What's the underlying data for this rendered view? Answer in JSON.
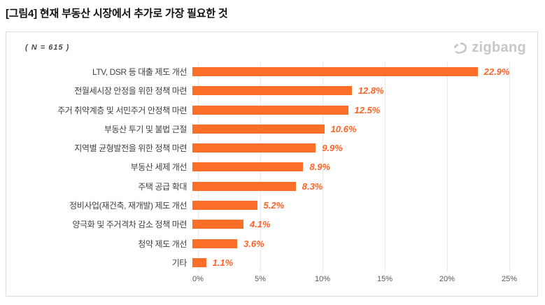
{
  "title": "[그림4] 현재 부동산 시장에서 추가로 가장 필요한 것",
  "panel": {
    "sample_label": "( N = 615 )"
  },
  "brand": {
    "name": "zigbang",
    "icon": "zigbang-logo-mark",
    "color": "#c7c7c7"
  },
  "colors": {
    "bar": "#fa6e28",
    "value_label": "#fa6428",
    "grid": "#eaeaea",
    "axis_text": "#595959",
    "category_text": "#3f3f3f",
    "panel_border": "#dcdcdc",
    "title_text": "#111111"
  },
  "chart_data": {
    "type": "bar",
    "orientation": "horizontal",
    "title": "현재 부동산 시장에서 추가로 가장 필요한 것",
    "subtitle": "( N = 615 )",
    "categories": [
      "LTV, DSR 등 대출 제도 개선",
      "전월세시장 안정을 위한 정책 마련",
      "주거 취약계층 및 서민주거 안정책 마련",
      "부동산 투기 및 불법 근절",
      "지역별 균형발전을 위한 정책 마련",
      "부동산 세제 개선",
      "주택 공급 확대",
      "정비사업(재건축, 재개발) 제도 개선",
      "양극화 및 주거격차 감소 정책 마련",
      "청약 제도 개선",
      "기타"
    ],
    "values": [
      22.9,
      12.8,
      12.5,
      10.6,
      9.9,
      8.9,
      8.3,
      5.2,
      4.1,
      3.6,
      1.1
    ],
    "value_labels": [
      "22.9%",
      "12.8%",
      "12.5%",
      "10.6%",
      "9.9%",
      "8.9%",
      "8.3%",
      "5.2%",
      "4.1%",
      "3.6%",
      "1.1%"
    ],
    "xlabel": "",
    "ylabel": "",
    "xlim": [
      0,
      25
    ],
    "x_ticks": [
      "0%",
      "5%",
      "10%",
      "15%",
      "20%",
      "25%"
    ],
    "x_tick_values": [
      0,
      5,
      10,
      15,
      20,
      25
    ],
    "grid": "vertical-only",
    "legend": false
  }
}
